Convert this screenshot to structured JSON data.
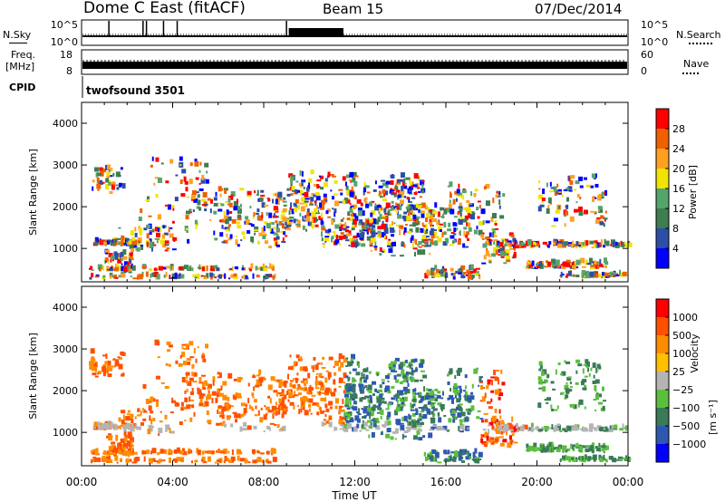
{
  "header": {
    "station": "Dome C East (fitACF)",
    "beam": "Beam 15",
    "date": "07/Dec/2014"
  },
  "strip_panels": {
    "noise": {
      "left_label": "N.Sky",
      "right_label": "N.Search",
      "left_ticks": [
        "10^5",
        "10^0"
      ],
      "right_ticks": [
        "10^5",
        "10^0"
      ]
    },
    "freq": {
      "left_label_1": "Freq.",
      "left_label_2": "[MHz]",
      "right_label": "Nave",
      "left_ticks": [
        "18",
        "8"
      ],
      "right_ticks": [
        "60",
        "0"
      ]
    },
    "cpid": {
      "left_label": "CPID",
      "value": "twofsound 3501"
    }
  },
  "colors": {
    "power_scale": [
      "#0000ff",
      "#2c4ea8",
      "#3e7d50",
      "#55a46c",
      "#f0e400",
      "#ffa020",
      "#f06000",
      "#ff0000"
    ],
    "velocity_scale": [
      "#0000ff",
      "#2e58b0",
      "#3a7a58",
      "#5bbf3c",
      "#b4b4b4",
      "#ffc000",
      "#ff8c00",
      "#ff5000",
      "#ff0000"
    ]
  },
  "chart_data": [
    {
      "type": "heatmap",
      "panel": "power",
      "xlabel": "Time UT",
      "ylabel": "Slant Range [km]",
      "x_ticks": [
        "00:00",
        "04:00",
        "08:00",
        "12:00",
        "16:00",
        "20:00",
        "00:00"
      ],
      "y_ticks": [
        "1000",
        "2000",
        "3000",
        "4000"
      ],
      "ylim": [
        200,
        4500
      ],
      "xlim_hours": [
        0,
        24
      ],
      "colorbar_label": "Power [dB]",
      "colorbar_ticks": [
        "28",
        "24",
        "20",
        "16",
        "12",
        "8",
        "4"
      ],
      "colorbar_range": [
        0,
        30
      ]
    },
    {
      "type": "heatmap",
      "panel": "velocity",
      "xlabel": "Time UT",
      "ylabel": "Slant Range [km]",
      "x_ticks": [
        "00:00",
        "04:00",
        "08:00",
        "12:00",
        "16:00",
        "20:00",
        "00:00"
      ],
      "y_ticks": [
        "1000",
        "2000",
        "3000",
        "4000"
      ],
      "ylim": [
        200,
        4500
      ],
      "xlim_hours": [
        0,
        24
      ],
      "colorbar_label": "Velocity",
      "colorbar_unit": "[m s⁻¹]",
      "colorbar_ticks": [
        "1000",
        "500",
        "100",
        "25",
        "−25",
        "−100",
        "−500",
        "−1000"
      ]
    }
  ]
}
